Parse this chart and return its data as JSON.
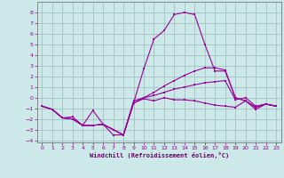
{
  "xlabel": "Windchill (Refroidissement éolien,°C)",
  "background_color": "#cce8e8",
  "grid_color": "#99bbbb",
  "line_color": "#990099",
  "xlim": [
    -0.5,
    23.5
  ],
  "ylim": [
    -4.2,
    9.0
  ],
  "xticks": [
    0,
    1,
    2,
    3,
    4,
    5,
    6,
    7,
    8,
    9,
    10,
    11,
    12,
    13,
    14,
    15,
    16,
    17,
    18,
    19,
    20,
    21,
    22,
    23
  ],
  "yticks": [
    -4,
    -3,
    -2,
    -1,
    0,
    1,
    2,
    3,
    4,
    5,
    6,
    7,
    8
  ],
  "line1_x": [
    0,
    1,
    2,
    3,
    4,
    5,
    6,
    7,
    8,
    9,
    10,
    11,
    12,
    13,
    14,
    15,
    16,
    17,
    18,
    19,
    20,
    21,
    22,
    23
  ],
  "line1_y": [
    -0.8,
    -1.1,
    -1.9,
    -2.0,
    -2.6,
    -2.6,
    -2.5,
    -3.0,
    -3.5,
    -0.5,
    -0.1,
    -0.3,
    -0.0,
    -0.2,
    -0.2,
    -0.3,
    -0.5,
    -0.7,
    -0.8,
    -0.9,
    -0.3,
    -0.9,
    -0.6,
    -0.8
  ],
  "line2_x": [
    0,
    1,
    2,
    3,
    4,
    5,
    6,
    7,
    8,
    9,
    10,
    11,
    12,
    13,
    14,
    15,
    16,
    17,
    18,
    19,
    20,
    21,
    22,
    23
  ],
  "line2_y": [
    -0.8,
    -1.1,
    -1.9,
    -2.0,
    -2.6,
    -2.6,
    -2.5,
    -3.5,
    -3.5,
    -0.5,
    2.7,
    5.5,
    6.3,
    7.8,
    8.0,
    7.8,
    5.0,
    2.5,
    2.5,
    0.0,
    -0.3,
    -0.9,
    -0.6,
    -0.8
  ],
  "line3_x": [
    0,
    1,
    2,
    3,
    4,
    5,
    6,
    7,
    8,
    9,
    10,
    11,
    12,
    13,
    14,
    15,
    16,
    17,
    18,
    19,
    20,
    21,
    22,
    23
  ],
  "line3_y": [
    -0.8,
    -1.1,
    -1.9,
    -1.8,
    -2.6,
    -1.2,
    -2.5,
    -3.0,
    -3.5,
    -0.5,
    0.0,
    0.5,
    1.1,
    1.6,
    2.1,
    2.5,
    2.8,
    2.8,
    2.6,
    0.0,
    -0.3,
    -1.1,
    -0.6,
    -0.8
  ],
  "line4_x": [
    0,
    1,
    2,
    3,
    4,
    5,
    6,
    7,
    8,
    9,
    10,
    11,
    12,
    13,
    14,
    15,
    16,
    17,
    18,
    19,
    20,
    21,
    22,
    23
  ],
  "line4_y": [
    -0.8,
    -1.1,
    -1.9,
    -2.0,
    -2.6,
    -2.6,
    -2.5,
    -3.0,
    -3.5,
    -0.3,
    -0.0,
    0.2,
    0.5,
    0.8,
    1.0,
    1.2,
    1.4,
    1.5,
    1.6,
    -0.2,
    0.0,
    -0.8,
    -0.6,
    -0.8
  ]
}
